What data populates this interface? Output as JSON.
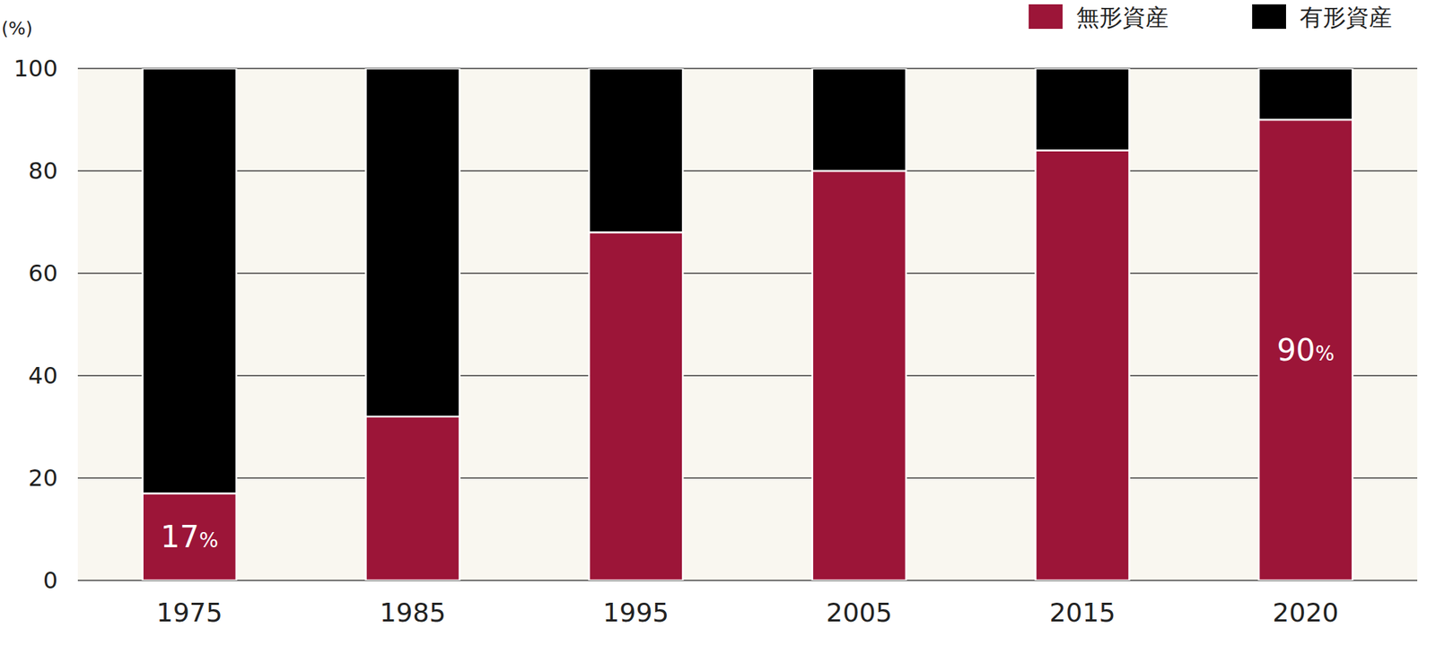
{
  "chart_data": {
    "type": "bar",
    "stacked": true,
    "y_label": "(%)",
    "categories": [
      "1975",
      "1985",
      "1995",
      "2005",
      "2015",
      "2020"
    ],
    "series": [
      {
        "name": "無形資産",
        "color": "#9c1538",
        "values": [
          17,
          32,
          68,
          80,
          84,
          90
        ],
        "data_labels": true,
        "value_labels": [
          "17%",
          null,
          null,
          null,
          null,
          "90%"
        ]
      },
      {
        "name": "有形資産",
        "color": "#000000",
        "values": [
          83,
          68,
          32,
          20,
          16,
          10
        ]
      }
    ],
    "ylim": [
      0,
      100
    ],
    "yticks": [
      0,
      20,
      40,
      60,
      80,
      100
    ],
    "grid": true,
    "legend": "top-right"
  }
}
